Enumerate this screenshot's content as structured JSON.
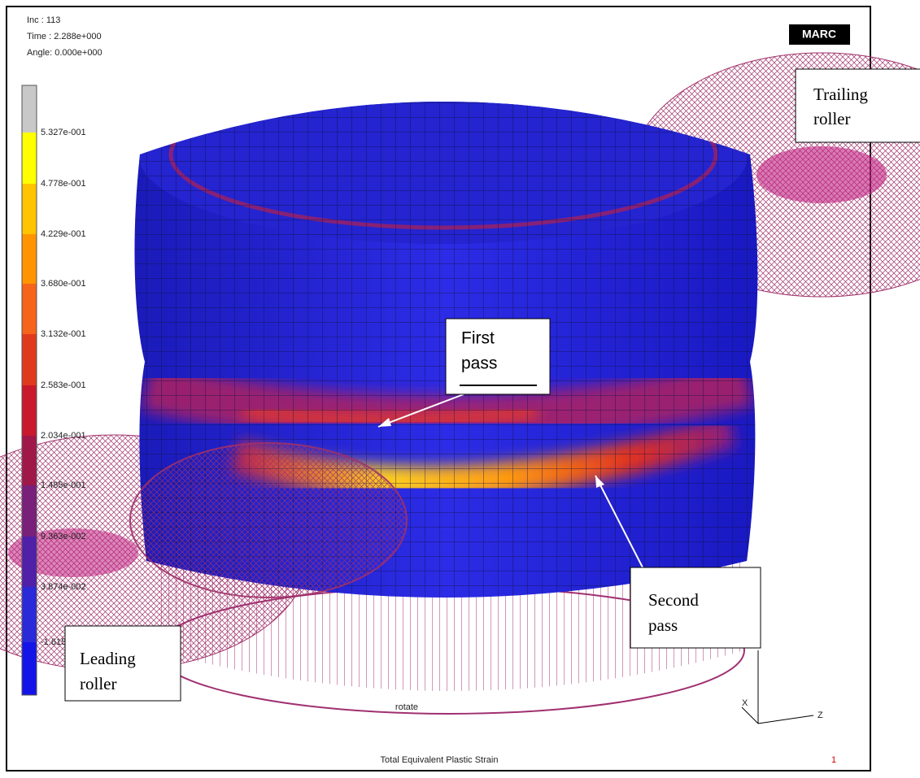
{
  "info": {
    "increment": "Inc :  113",
    "time": "Time : 2.288e+000",
    "angle": "Angle: 0.000e+000"
  },
  "logo": "MARC",
  "legend": {
    "labels": [
      "5.327e-001",
      "4.778e-001",
      "4.229e-001",
      "3.680e-001",
      "3.132e-001",
      "2.583e-001",
      "2.034e-001",
      "1.485e-001",
      "9.363e-002",
      "3.874e-002",
      "-1.615e-002"
    ]
  },
  "annotations": {
    "trailing_roller": [
      "Trailing",
      "roller"
    ],
    "first_pass": [
      "First",
      "pass"
    ],
    "second_pass": [
      "Second",
      "pass"
    ],
    "leading_roller": [
      "Leading",
      "roller"
    ]
  },
  "axes": {
    "x": "X",
    "z": "Z"
  },
  "footer": {
    "mode": "rotate",
    "variable": "Total Equivalent Plastic Strain",
    "index": "1"
  }
}
